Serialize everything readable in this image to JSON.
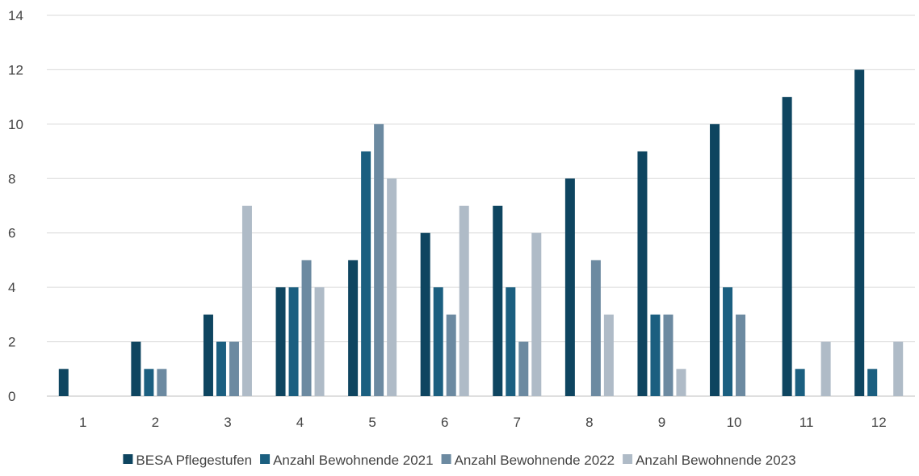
{
  "chart_data": {
    "type": "bar",
    "title": "",
    "xlabel": "",
    "ylabel": "",
    "categories": [
      "1",
      "2",
      "3",
      "4",
      "5",
      "6",
      "7",
      "8",
      "9",
      "10",
      "11",
      "12"
    ],
    "ylim": [
      0,
      14
    ],
    "yticks": [
      0,
      2,
      4,
      6,
      8,
      10,
      12,
      14
    ],
    "grid": true,
    "legend_position": "bottom",
    "series": [
      {
        "name": "BESA Pflegestufen",
        "color": "#0e4560",
        "values": [
          1,
          2,
          3,
          4,
          5,
          6,
          7,
          8,
          9,
          10,
          11,
          12
        ]
      },
      {
        "name": "Anzahl Bewohnende 2021",
        "color": "#1b5f80",
        "values": [
          0,
          1,
          2,
          4,
          9,
          4,
          4,
          0,
          3,
          4,
          1,
          1
        ]
      },
      {
        "name": "Anzahl Bewohnende 2022",
        "color": "#6c8aa1",
        "values": [
          0,
          1,
          2,
          5,
          10,
          3,
          2,
          5,
          3,
          3,
          0,
          0
        ]
      },
      {
        "name": "Anzahl Bewohnende 2023",
        "color": "#afbbc7",
        "values": [
          0,
          0,
          7,
          4,
          8,
          7,
          6,
          3,
          1,
          0,
          2,
          2
        ]
      }
    ]
  }
}
